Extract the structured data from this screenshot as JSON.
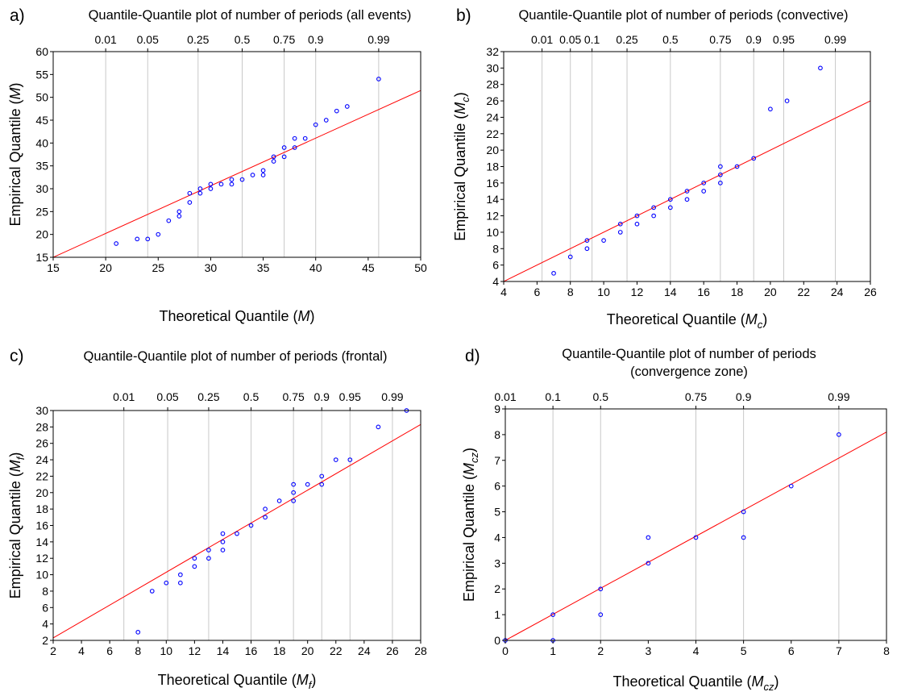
{
  "chart_data": [
    {
      "panel": "a)",
      "type": "scatter",
      "title": "Quantile-Quantile plot of number of periods (all events)",
      "title_line2": "",
      "xlabel": "Theoretical Quantile",
      "xlabel_var": "M",
      "xlabel_sub": "",
      "ylabel": "Empirical Quantile",
      "ylabel_var": "M",
      "ylabel_sub": "",
      "xlim": [
        15,
        50
      ],
      "ylim": [
        15,
        60
      ],
      "xticks": [
        15,
        20,
        25,
        30,
        35,
        40,
        45,
        50
      ],
      "yticks": [
        15,
        20,
        25,
        30,
        35,
        40,
        45,
        50,
        55,
        60
      ],
      "probability_ticks": [
        {
          "label": "0.01",
          "x": 20
        },
        {
          "label": "0.05",
          "x": 24
        },
        {
          "label": "0.25",
          "x": 28.8
        },
        {
          "label": "0.5",
          "x": 33
        },
        {
          "label": "0.75",
          "x": 37
        },
        {
          "label": "0.9",
          "x": 40
        },
        {
          "label": "0.99",
          "x": 46
        }
      ],
      "grid": "vertical lines at probability ticks",
      "fit_line": {
        "x": [
          15,
          50
        ],
        "y": [
          15,
          51.5
        ]
      },
      "points": [
        [
          21,
          18
        ],
        [
          23,
          19
        ],
        [
          24,
          19
        ],
        [
          25,
          20
        ],
        [
          26,
          23
        ],
        [
          27,
          24
        ],
        [
          27,
          25
        ],
        [
          28,
          27
        ],
        [
          28,
          29
        ],
        [
          29,
          29
        ],
        [
          29,
          30
        ],
        [
          30,
          30
        ],
        [
          30,
          31
        ],
        [
          31,
          31
        ],
        [
          32,
          31
        ],
        [
          32,
          32
        ],
        [
          33,
          32
        ],
        [
          34,
          33
        ],
        [
          35,
          33
        ],
        [
          35,
          34
        ],
        [
          36,
          36
        ],
        [
          36,
          37
        ],
        [
          37,
          37
        ],
        [
          37,
          39
        ],
        [
          38,
          39
        ],
        [
          38,
          41
        ],
        [
          39,
          41
        ],
        [
          40,
          44
        ],
        [
          41,
          45
        ],
        [
          42,
          47
        ],
        [
          43,
          48
        ],
        [
          46,
          54
        ]
      ]
    },
    {
      "panel": "b)",
      "type": "scatter",
      "title": "Quantile-Quantile plot of number of periods (convective)",
      "title_line2": "",
      "xlabel": "Theoretical Quantile",
      "xlabel_var": "M",
      "xlabel_sub": "c",
      "ylabel": "Empirical Quantile",
      "ylabel_var": "M",
      "ylabel_sub": "c",
      "xlim": [
        4,
        26
      ],
      "ylim": [
        4,
        32
      ],
      "xticks": [
        4,
        6,
        8,
        10,
        12,
        14,
        16,
        18,
        20,
        22,
        24,
        26
      ],
      "yticks": [
        4,
        6,
        8,
        10,
        12,
        14,
        16,
        18,
        20,
        22,
        24,
        26,
        28,
        30,
        32
      ],
      "probability_ticks": [
        {
          "label": "0.01",
          "x": 6.3
        },
        {
          "label": "0.05",
          "x": 8.0
        },
        {
          "label": "0.1",
          "x": 9.3
        },
        {
          "label": "0.25",
          "x": 11.4
        },
        {
          "label": "0.5",
          "x": 14.0
        },
        {
          "label": "0.75",
          "x": 17.0
        },
        {
          "label": "0.9",
          "x": 19.0
        },
        {
          "label": "0.95",
          "x": 20.8
        },
        {
          "label": "0.99",
          "x": 23.9
        }
      ],
      "grid": "vertical lines at probability ticks",
      "fit_line": {
        "x": [
          4,
          26
        ],
        "y": [
          4,
          26
        ]
      },
      "points": [
        [
          7,
          5
        ],
        [
          8,
          7
        ],
        [
          9,
          8
        ],
        [
          9,
          9
        ],
        [
          10,
          9
        ],
        [
          11,
          10
        ],
        [
          11,
          11
        ],
        [
          12,
          11
        ],
        [
          12,
          12
        ],
        [
          13,
          12
        ],
        [
          13,
          13
        ],
        [
          14,
          13
        ],
        [
          14,
          14
        ],
        [
          15,
          14
        ],
        [
          15,
          15
        ],
        [
          16,
          15
        ],
        [
          16,
          16
        ],
        [
          17,
          16
        ],
        [
          17,
          17
        ],
        [
          17,
          18
        ],
        [
          18,
          18
        ],
        [
          19,
          19
        ],
        [
          20,
          25
        ],
        [
          21,
          26
        ],
        [
          23,
          30
        ]
      ]
    },
    {
      "panel": "c)",
      "type": "scatter",
      "title": "Quantile-Quantile plot of number of periods (frontal)",
      "title_line2": "",
      "xlabel": "Theoretical Quantile",
      "xlabel_var": "M",
      "xlabel_sub": "f",
      "ylabel": "Empirical Quantile",
      "ylabel_var": "M",
      "ylabel_sub": "f",
      "xlim": [
        2,
        28
      ],
      "ylim": [
        2,
        30
      ],
      "xticks": [
        2,
        4,
        6,
        8,
        10,
        12,
        14,
        16,
        18,
        20,
        22,
        24,
        26,
        28
      ],
      "yticks": [
        2,
        4,
        6,
        8,
        10,
        12,
        14,
        16,
        18,
        20,
        22,
        24,
        26,
        28,
        30
      ],
      "probability_ticks": [
        {
          "label": "0.01",
          "x": 7.0
        },
        {
          "label": "0.05",
          "x": 10.1
        },
        {
          "label": "0.25",
          "x": 13.0
        },
        {
          "label": "0.5",
          "x": 16.0
        },
        {
          "label": "0.75",
          "x": 19.0
        },
        {
          "label": "0.9",
          "x": 21.0
        },
        {
          "label": "0.95",
          "x": 23.0
        },
        {
          "label": "0.99",
          "x": 26.0
        }
      ],
      "grid": "vertical lines at probability ticks",
      "fit_line": {
        "x": [
          2,
          28
        ],
        "y": [
          2.3,
          28.3
        ]
      },
      "points": [
        [
          8,
          3
        ],
        [
          9,
          8
        ],
        [
          10,
          9
        ],
        [
          11,
          9
        ],
        [
          11,
          10
        ],
        [
          12,
          11
        ],
        [
          12,
          12
        ],
        [
          13,
          12
        ],
        [
          13,
          13
        ],
        [
          14,
          13
        ],
        [
          14,
          14
        ],
        [
          14,
          15
        ],
        [
          15,
          15
        ],
        [
          16,
          16
        ],
        [
          17,
          17
        ],
        [
          17,
          18
        ],
        [
          18,
          19
        ],
        [
          19,
          19
        ],
        [
          19,
          20
        ],
        [
          19,
          21
        ],
        [
          20,
          21
        ],
        [
          21,
          21
        ],
        [
          21,
          22
        ],
        [
          22,
          24
        ],
        [
          23,
          24
        ],
        [
          25,
          28
        ],
        [
          27,
          30
        ]
      ]
    },
    {
      "panel": "d)",
      "type": "scatter",
      "title": "Quantile-Quantile plot of number of periods",
      "title_line2": "(convergence zone)",
      "xlabel": "Theoretical Quantile",
      "xlabel_var": "M",
      "xlabel_sub": "cz",
      "ylabel": "Empirical Quantile",
      "ylabel_var": "M",
      "ylabel_sub": "cz",
      "xlim": [
        0,
        8
      ],
      "ylim": [
        0,
        9
      ],
      "xticks": [
        0,
        1,
        2,
        3,
        4,
        5,
        6,
        7,
        8
      ],
      "yticks": [
        0,
        1,
        2,
        3,
        4,
        5,
        6,
        7,
        8,
        9
      ],
      "probability_ticks": [
        {
          "label": "0.01",
          "x": 0
        },
        {
          "label": "0.1",
          "x": 1
        },
        {
          "label": "0.5",
          "x": 2
        },
        {
          "label": "0.75",
          "x": 4
        },
        {
          "label": "0.9",
          "x": 5
        },
        {
          "label": "0.99",
          "x": 7
        }
      ],
      "grid": "vertical lines at probability ticks",
      "fit_line": {
        "x": [
          0,
          8
        ],
        "y": [
          0,
          8.1
        ]
      },
      "points": [
        [
          0,
          0
        ],
        [
          1,
          0
        ],
        [
          1,
          1
        ],
        [
          2,
          1
        ],
        [
          2,
          2
        ],
        [
          3,
          3
        ],
        [
          3,
          4
        ],
        [
          4,
          4
        ],
        [
          5,
          4
        ],
        [
          5,
          5
        ],
        [
          6,
          6
        ],
        [
          7,
          8
        ]
      ]
    }
  ],
  "colors": {
    "points": "#0000ff",
    "fit_line": "#ff0000",
    "grid": "#c8c8c8",
    "axes": "#000000"
  }
}
